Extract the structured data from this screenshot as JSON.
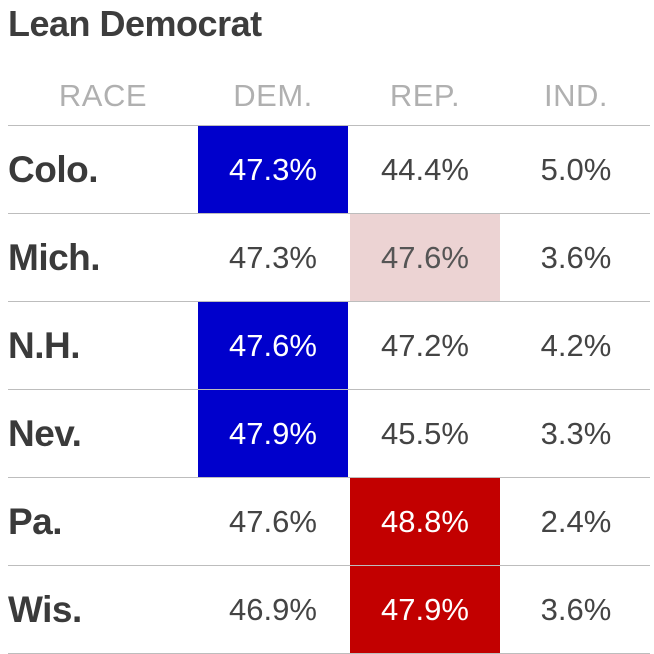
{
  "title": "Lean Democrat",
  "columns": {
    "race": "RACE",
    "dem": "DEM.",
    "rep": "REP.",
    "ind": "IND."
  },
  "colors": {
    "dem_strong": "#0000cc",
    "rep_strong": "#c20000",
    "rep_light": "#ecd3d3"
  },
  "rows": [
    {
      "race": "Colo.",
      "dem": "47.3%",
      "rep": "44.4%",
      "ind": "5.0%"
    },
    {
      "race": "Mich.",
      "dem": "47.3%",
      "rep": "47.6%",
      "ind": "3.6%"
    },
    {
      "race": "N.H.",
      "dem": "47.6%",
      "rep": "47.2%",
      "ind": "4.2%"
    },
    {
      "race": "Nev.",
      "dem": "47.9%",
      "rep": "45.5%",
      "ind": "3.3%"
    },
    {
      "race": "Pa.",
      "dem": "47.6%",
      "rep": "48.8%",
      "ind": "2.4%"
    },
    {
      "race": "Wis.",
      "dem": "46.9%",
      "rep": "47.9%",
      "ind": "3.6%"
    }
  ]
}
